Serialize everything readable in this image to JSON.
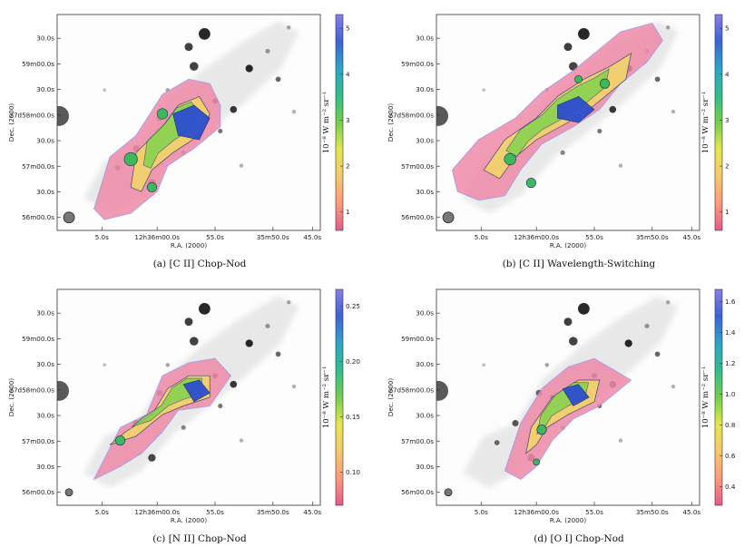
{
  "figure": {
    "common": {
      "xlabel": "R.A. (2000)",
      "ylabel": "Dec. (2000)",
      "x_ticks": [
        "5.0s",
        "12h36m00.0s",
        "55.0s",
        "35m50.0s",
        "45.0s"
      ],
      "y_ticks": [
        "30.0s",
        "59m00.0s",
        "30.0s",
        "27d58m00.0s",
        "30.0s",
        "57m00.0s",
        "30.0s",
        "56m00.0s"
      ],
      "colorbar_label": "10⁻⁸ W m⁻² sr⁻¹"
    },
    "panels": [
      {
        "caption": "(a) [C II] Chop-Nod",
        "colorbar_ticks": [
          "1",
          "2",
          "3",
          "4",
          "5"
        ]
      },
      {
        "caption": "(b) [C II] Wavelength-Switching",
        "colorbar_ticks": [
          "1",
          "2",
          "3",
          "4",
          "5"
        ]
      },
      {
        "caption": "(c) [N II] Chop-Nod",
        "colorbar_ticks": [
          "0.10",
          "0.15",
          "0.20",
          "0.25"
        ]
      },
      {
        "caption": "(d) [O I] Chop-Nod",
        "colorbar_ticks": [
          "0.4",
          "0.6",
          "0.8",
          "1.0",
          "1.2",
          "1.4",
          "1.6"
        ]
      }
    ]
  },
  "chart_data": [
    {
      "type": "heatmap",
      "title": "(a) [C II] Chop-Nod",
      "line": "[C II]",
      "mode": "Chop-Nod",
      "xlabel": "R.A. (2000)",
      "ylabel": "Dec. (2000)",
      "colorbar_label": "10^-8 W m^-2 sr^-1",
      "colorbar_range": [
        0.6,
        5.3
      ],
      "colorbar_ticks": [
        1,
        2,
        3,
        4,
        5
      ],
      "colormap": [
        "#e8588a",
        "#ff9a7a",
        "#f5c86a",
        "#e6e84a",
        "#72cf4a",
        "#2dbf8a",
        "#2aa6cc",
        "#3a63d8",
        "#8a7ee8"
      ],
      "peak": 5.0,
      "background": "grayscale optical image",
      "contours": true
    },
    {
      "type": "heatmap",
      "title": "(b) [C II] Wavelength-Switching",
      "line": "[C II]",
      "mode": "Wavelength-Switching",
      "xlabel": "R.A. (2000)",
      "ylabel": "Dec. (2000)",
      "colorbar_label": "10^-8 W m^-2 sr^-1",
      "colorbar_range": [
        0.6,
        5.3
      ],
      "colorbar_ticks": [
        1,
        2,
        3,
        4,
        5
      ],
      "colormap": [
        "#e8588a",
        "#ff9a7a",
        "#f5c86a",
        "#e6e84a",
        "#72cf4a",
        "#2dbf8a",
        "#2aa6cc",
        "#3a63d8",
        "#8a7ee8"
      ],
      "peak": 5.0,
      "background": "grayscale optical image",
      "contours": true
    },
    {
      "type": "heatmap",
      "title": "(c) [N II] Chop-Nod",
      "line": "[N II]",
      "mode": "Chop-Nod",
      "xlabel": "R.A. (2000)",
      "ylabel": "Dec. (2000)",
      "colorbar_label": "10^-8 W m^-2 sr^-1",
      "colorbar_range": [
        0.07,
        0.265
      ],
      "colorbar_ticks": [
        0.1,
        0.15,
        0.2,
        0.25
      ],
      "colormap": [
        "#e8588a",
        "#ff9a7a",
        "#f5c86a",
        "#e6e84a",
        "#72cf4a",
        "#2dbf8a",
        "#2aa6cc",
        "#3a63d8",
        "#8a7ee8"
      ],
      "peak": 0.25,
      "background": "grayscale optical image",
      "contours": true
    },
    {
      "type": "heatmap",
      "title": "(d) [O I] Chop-Nod",
      "line": "[O I]",
      "mode": "Chop-Nod",
      "xlabel": "R.A. (2000)",
      "ylabel": "Dec. (2000)",
      "colorbar_label": "10^-8 W m^-2 sr^-1",
      "colorbar_range": [
        0.28,
        1.68
      ],
      "colorbar_ticks": [
        0.4,
        0.6,
        0.8,
        1.0,
        1.2,
        1.4,
        1.6
      ],
      "colormap": [
        "#e8588a",
        "#ff9a7a",
        "#f5c86a",
        "#e6e84a",
        "#72cf4a",
        "#2dbf8a",
        "#2aa6cc",
        "#3a63d8",
        "#8a7ee8"
      ],
      "peak": 1.6,
      "background": "grayscale optical image",
      "contours": true
    }
  ]
}
